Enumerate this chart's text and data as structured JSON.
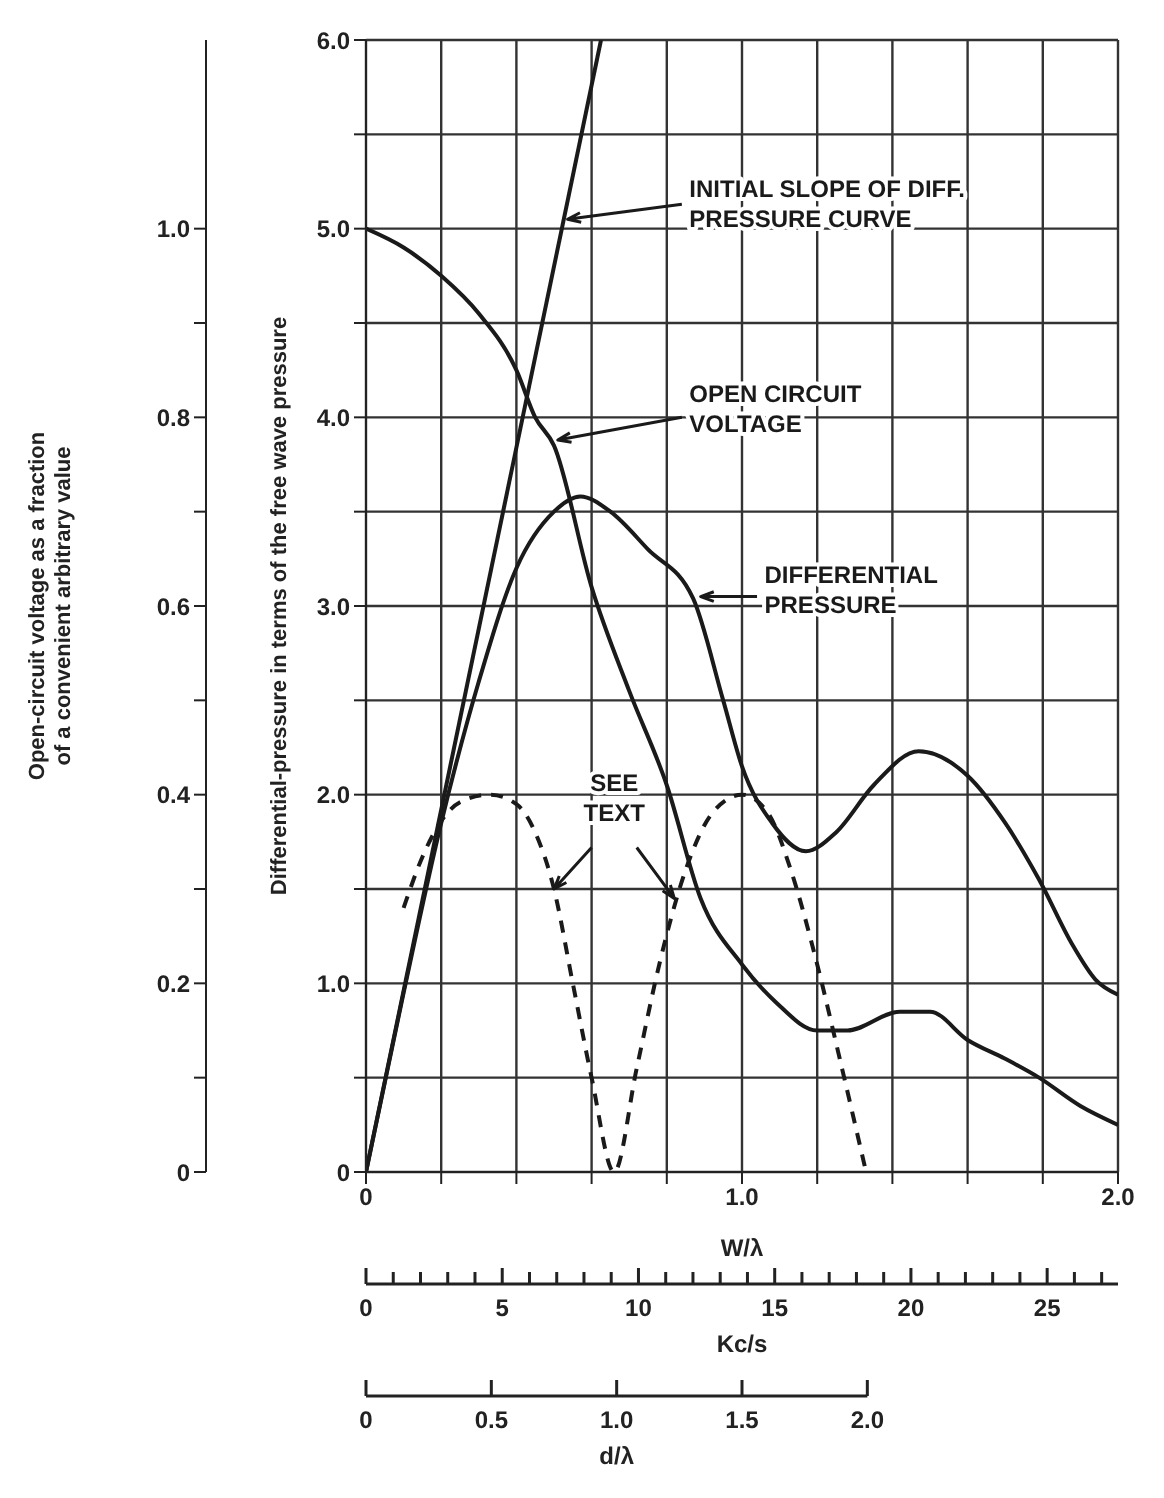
{
  "chart_data": {
    "type": "line",
    "xlabel": "W/λ",
    "ylabel": "Differential-pressure in terms of the free wave pressure",
    "y2label": "Open-circuit voltage as a fraction of a convenient arbitrary value",
    "x2label": "Kc/s",
    "annotations": [
      "0",
      "0.5",
      "1.0",
      "1.5",
      "2.0",
      "d/λ",
      {
        "text": "INITIAL SLOPE OF DIFF. PRESSURE CURVE",
        "x": 0.526,
        "y": 5.05
      },
      {
        "text": "OPEN CIRCUIT VOLTAGE",
        "x": 0.51,
        "y": 3.88
      },
      {
        "text": "DIFFERENTIAL PRESSURE",
        "x": 0.89,
        "y": 3.05
      },
      {
        "text": "SEE TEXT",
        "x": 0.5,
        "y": 1.5
      }
    ],
    "xlim": [
      0,
      2
    ],
    "xticks": [
      {
        "value": 0,
        "label": "0"
      },
      {
        "value": 0.2,
        "label": null
      },
      {
        "value": 0.4,
        "label": null
      },
      {
        "value": 0.6,
        "label": null
      },
      {
        "value": 0.8,
        "label": null
      },
      {
        "value": 1,
        "label": "1.0"
      },
      {
        "value": 1.2,
        "label": null
      },
      {
        "value": 1.4,
        "label": null
      },
      {
        "value": 1.6,
        "label": null
      },
      {
        "value": 1.8,
        "label": null
      },
      {
        "value": 2,
        "label": "2.0"
      }
    ],
    "ylim": [
      0,
      6
    ],
    "yticks": [
      {
        "value": 0,
        "label": "0"
      },
      {
        "value": 0.5,
        "label": null
      },
      {
        "value": 1,
        "label": "1.0"
      },
      {
        "value": 1.5,
        "label": null
      },
      {
        "value": 2,
        "label": "2.0"
      },
      {
        "value": 2.5,
        "label": null
      },
      {
        "value": 3,
        "label": "3.0"
      },
      {
        "value": 3.5,
        "label": null
      },
      {
        "value": 4,
        "label": "4.0"
      },
      {
        "value": 4.5,
        "label": null
      },
      {
        "value": 5,
        "label": "5.0"
      },
      {
        "value": 5.5,
        "label": null
      },
      {
        "value": 6,
        "label": "6.0"
      }
    ],
    "y2lim": [
      0,
      1.2
    ],
    "y2ticks": [
      {
        "value": 0,
        "label": "0"
      },
      {
        "value": 0.1,
        "label": null
      },
      {
        "value": 0.2,
        "label": "0.2"
      },
      {
        "value": 0.3,
        "label": null
      },
      {
        "value": 0.4,
        "label": "0.4"
      },
      {
        "value": 0.5,
        "label": null
      },
      {
        "value": 0.6,
        "label": "0.6"
      },
      {
        "value": 0.7,
        "label": null
      },
      {
        "value": 0.8,
        "label": "0.8"
      },
      {
        "value": 0.9,
        "label": null
      },
      {
        "value": 1,
        "label": "1.0"
      }
    ],
    "x2lim": [
      0,
      27.6
    ],
    "x2ticks": [
      0,
      5,
      10,
      15,
      20,
      25
    ],
    "grid": true,
    "marker": "none",
    "series": [
      {
        "color": "#1a1a1a",
        "x": [
          0,
          0.625
        ],
        "values": [
          0,
          6
        ]
      },
      {
        "color": "#1a1a1a",
        "axis": "y2",
        "x": [
          0,
          0.1,
          0.2,
          0.3,
          0.4,
          0.45,
          0.5,
          0.6,
          0.7,
          0.8,
          0.89,
          1,
          1.09,
          1.2,
          1.28,
          1.42,
          1.5,
          1.6,
          1.7,
          1.79,
          1.9,
          2
        ],
        "values": [
          1,
          0.98,
          0.95,
          0.91,
          0.85,
          0.8,
          0.77,
          0.62,
          0.51,
          0.41,
          0.29,
          0.22,
          0.18,
          0.15,
          0.15,
          0.17,
          0.17,
          0.14,
          0.12,
          0.1,
          0.07,
          0.05
        ]
      },
      {
        "color": "#1a1a1a",
        "x": [
          0,
          0.1,
          0.2,
          0.3,
          0.4,
          0.5,
          0.57,
          0.65,
          0.75,
          0.87,
          0.95,
          1,
          1.08,
          1.17,
          1.25,
          1.35,
          1.47,
          1.6,
          1.7,
          1.79,
          1.88,
          1.94,
          2
        ],
        "values": [
          0,
          0.95,
          1.85,
          2.6,
          3.2,
          3.5,
          3.58,
          3.5,
          3.3,
          3.04,
          2.5,
          2.15,
          1.85,
          1.7,
          1.8,
          2.05,
          2.23,
          2.1,
          1.85,
          1.55,
          1.2,
          1.02,
          0.94
        ]
      },
      {
        "color": "#1a1a1a",
        "line_style": "dashed",
        "x": [
          0.1,
          0.15,
          0.2,
          0.25,
          0.33,
          0.4,
          0.45,
          0.5,
          0.55,
          0.6,
          0.66,
          0.72,
          0.78,
          0.85,
          0.92,
          1,
          1.07,
          1.13,
          1.2,
          1.26,
          1.33
        ],
        "values": [
          1.4,
          1.67,
          1.86,
          1.96,
          2,
          1.95,
          1.8,
          1.5,
          1,
          0.5,
          0,
          0.55,
          1.1,
          1.6,
          1.9,
          2,
          1.9,
          1.6,
          1.1,
          0.6,
          0
        ]
      }
    ]
  }
}
